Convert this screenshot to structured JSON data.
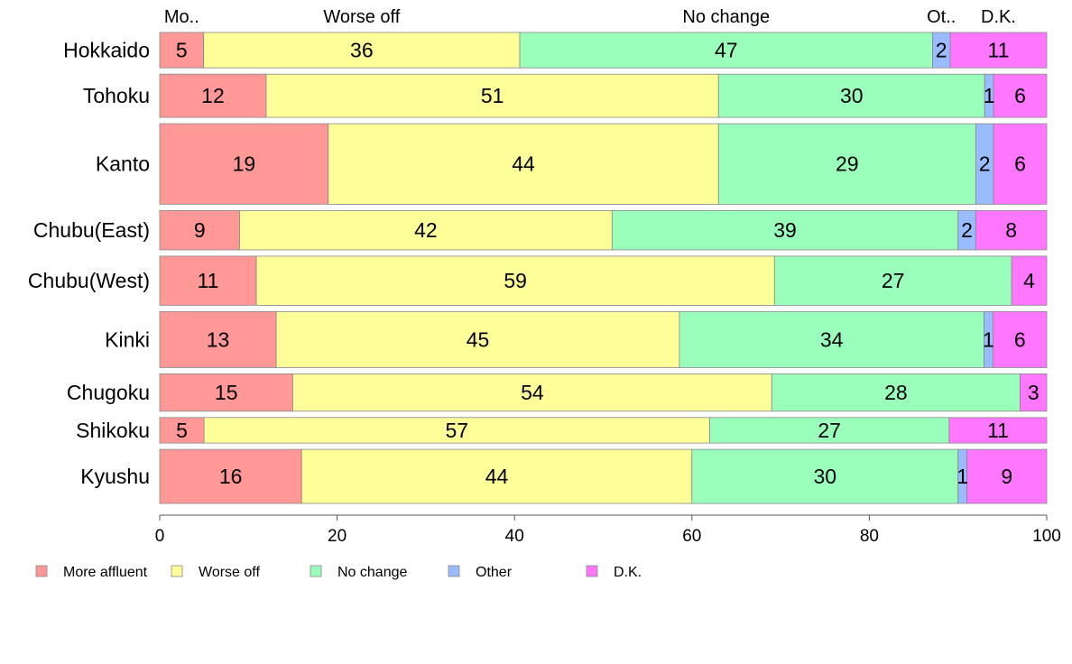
{
  "chart_data": {
    "type": "bar",
    "orientation": "horizontal",
    "stacked": true,
    "variable_width": true,
    "categories": [
      "Hokkaido",
      "Tohoku",
      "Kanto",
      "Chubu(East)",
      "Chubu(West)",
      "Kinki",
      "Chugoku",
      "Shikoku",
      "Kyushu"
    ],
    "series": [
      {
        "name": "More affluent",
        "short_label": "Mo..",
        "color": "#ff9896",
        "values": [
          5,
          12,
          19,
          9,
          11,
          13,
          15,
          5,
          16
        ]
      },
      {
        "name": "Worse off",
        "short_label": "Worse off",
        "color": "#ffff99",
        "values": [
          36,
          51,
          44,
          42,
          59,
          45,
          54,
          57,
          44
        ]
      },
      {
        "name": "No change",
        "short_label": "No change",
        "color": "#99ffbb",
        "values": [
          47,
          30,
          29,
          39,
          27,
          34,
          28,
          27,
          30
        ]
      },
      {
        "name": "Other",
        "short_label": "Ot..",
        "color": "#99bbff",
        "values": [
          2,
          1,
          2,
          2,
          0,
          1,
          0,
          0,
          1
        ]
      },
      {
        "name": "D.K.",
        "short_label": "D.K.",
        "color": "#ff77ff",
        "values": [
          11,
          6,
          6,
          8,
          4,
          6,
          3,
          11,
          9
        ]
      }
    ],
    "bar_widths": [
      36,
      44,
      82,
      40,
      50,
      57,
      38,
      26,
      55
    ],
    "xlim": [
      0,
      100
    ],
    "xticks": [
      0,
      20,
      40,
      60,
      80,
      100
    ],
    "legend_position": "bottom-left",
    "grid": false
  }
}
